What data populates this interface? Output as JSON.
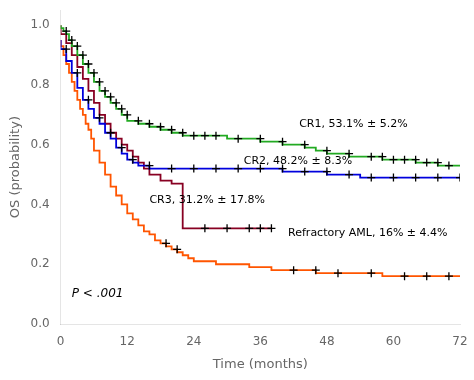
{
  "chart_data": {
    "type": "line",
    "xlabel": "Time (months)",
    "ylabel": "OS (probability)",
    "xlim": [
      0,
      72
    ],
    "ylim": [
      0,
      1.05
    ],
    "xticks": [
      0,
      12,
      24,
      36,
      48,
      60,
      72
    ],
    "yticks": [
      {
        "value": 0,
        "label": "0.0"
      },
      0.2,
      0.4,
      0.6,
      0.8,
      {
        "value": 1,
        "label": "1.0"
      }
    ],
    "grid": false,
    "series": [
      {
        "type": "step",
        "color": "#22aa22",
        "x": [
          0,
          0.5,
          1,
          1.5,
          2,
          3,
          4,
          5,
          6,
          7,
          8,
          9,
          10,
          11,
          12,
          14,
          16,
          18,
          20,
          22,
          24,
          26,
          28,
          30,
          32,
          34,
          36,
          38,
          40,
          42,
          44,
          46,
          48,
          50,
          52,
          54,
          56,
          58,
          60,
          62,
          64,
          66,
          68,
          70,
          72
        ],
        "values": [
          1.0,
          0.99,
          0.98,
          0.97,
          0.95,
          0.93,
          0.9,
          0.87,
          0.84,
          0.81,
          0.78,
          0.76,
          0.74,
          0.72,
          0.7,
          0.68,
          0.67,
          0.66,
          0.65,
          0.64,
          0.63,
          0.63,
          0.63,
          0.63,
          0.62,
          0.62,
          0.62,
          0.61,
          0.61,
          0.6,
          0.6,
          0.59,
          0.58,
          0.57,
          0.57,
          0.56,
          0.56,
          0.56,
          0.55,
          0.55,
          0.55,
          0.54,
          0.54,
          0.53,
          0.53
        ]
      },
      {
        "type": "scatter",
        "marker": "plus",
        "color": "#000000",
        "x": [
          1,
          2,
          3,
          4,
          5,
          6,
          7,
          8,
          9,
          10,
          11,
          12,
          14,
          16,
          18,
          20,
          22,
          24,
          26,
          28,
          32,
          36,
          40,
          44,
          48,
          52,
          56,
          58,
          60,
          62,
          64,
          66,
          68,
          70
        ],
        "values": [
          0.98,
          0.95,
          0.93,
          0.9,
          0.87,
          0.84,
          0.81,
          0.78,
          0.76,
          0.74,
          0.72,
          0.7,
          0.68,
          0.67,
          0.66,
          0.65,
          0.64,
          0.63,
          0.63,
          0.63,
          0.62,
          0.62,
          0.61,
          0.6,
          0.58,
          0.57,
          0.56,
          0.56,
          0.55,
          0.55,
          0.55,
          0.54,
          0.54,
          0.53
        ]
      },
      {
        "type": "step",
        "color": "#0000dd",
        "x": [
          0,
          1,
          2,
          3,
          4,
          5,
          6,
          7,
          8,
          9,
          10,
          11,
          12,
          13,
          14,
          16,
          18,
          20,
          22,
          24,
          26,
          28,
          30,
          32,
          34,
          36,
          38,
          40,
          42,
          44,
          46,
          48,
          50,
          52,
          54,
          56,
          58,
          60,
          62,
          64,
          66,
          68,
          70,
          72
        ],
        "values": [
          0.95,
          0.92,
          0.88,
          0.84,
          0.79,
          0.75,
          0.72,
          0.69,
          0.67,
          0.64,
          0.62,
          0.59,
          0.57,
          0.55,
          0.54,
          0.53,
          0.52,
          0.52,
          0.52,
          0.52,
          0.52,
          0.52,
          0.52,
          0.52,
          0.52,
          0.52,
          0.52,
          0.52,
          0.51,
          0.51,
          0.51,
          0.51,
          0.5,
          0.5,
          0.5,
          0.49,
          0.49,
          0.49,
          0.49,
          0.49,
          0.49,
          0.49,
          0.49,
          0.49
        ]
      },
      {
        "type": "scatter",
        "marker": "plus",
        "color": "#000000",
        "x": [
          1,
          3,
          5,
          7,
          9,
          11,
          13,
          16,
          20,
          24,
          28,
          32,
          36,
          40,
          44,
          48,
          52,
          56,
          60,
          64,
          68,
          72
        ],
        "values": [
          0.92,
          0.84,
          0.75,
          0.69,
          0.64,
          0.59,
          0.55,
          0.53,
          0.52,
          0.52,
          0.52,
          0.52,
          0.52,
          0.52,
          0.51,
          0.51,
          0.5,
          0.49,
          0.49,
          0.49,
          0.49,
          0.49
        ]
      },
      {
        "type": "step",
        "color": "#880022",
        "x": [
          0,
          1,
          2,
          3,
          4,
          5,
          6,
          7,
          8,
          9,
          10,
          11,
          12,
          13,
          14,
          15,
          16,
          18,
          20,
          22,
          24,
          26,
          28,
          30,
          32,
          34,
          36,
          38
        ],
        "values": [
          1.0,
          0.97,
          0.94,
          0.9,
          0.86,
          0.82,
          0.78,
          0.74,
          0.7,
          0.67,
          0.64,
          0.62,
          0.6,
          0.58,
          0.56,
          0.54,
          0.52,
          0.5,
          0.48,
          0.47,
          0.32,
          0.32,
          0.32,
          0.32,
          0.32,
          0.32,
          0.32,
          0.32
        ]
      },
      {
        "type": "scatter",
        "marker": "plus",
        "color": "#000000",
        "x": [
          26,
          30,
          34,
          36,
          38
        ],
        "values": [
          0.32,
          0.32,
          0.32,
          0.32,
          0.32
        ]
      },
      {
        "type": "step",
        "color": "#ff5500",
        "x": [
          0,
          0.5,
          1,
          1.5,
          2,
          2.5,
          3,
          3.5,
          4,
          4.5,
          5,
          5.5,
          6,
          7,
          8,
          9,
          10,
          11,
          12,
          13,
          14,
          15,
          16,
          17,
          18,
          19,
          20,
          21,
          22,
          23,
          24,
          26,
          28,
          30,
          32,
          34,
          36,
          38,
          40,
          42,
          44,
          46,
          48,
          50,
          52,
          54,
          56,
          58,
          60,
          62,
          64,
          66,
          68,
          70,
          72
        ],
        "values": [
          0.95,
          0.93,
          0.9,
          0.87,
          0.84,
          0.81,
          0.78,
          0.75,
          0.72,
          0.7,
          0.67,
          0.65,
          0.62,
          0.58,
          0.54,
          0.5,
          0.46,
          0.43,
          0.4,
          0.37,
          0.35,
          0.33,
          0.31,
          0.3,
          0.28,
          0.27,
          0.26,
          0.25,
          0.24,
          0.23,
          0.22,
          0.21,
          0.21,
          0.2,
          0.2,
          0.2,
          0.19,
          0.19,
          0.18,
          0.18,
          0.18,
          0.18,
          0.17,
          0.17,
          0.17,
          0.17,
          0.17,
          0.17,
          0.16,
          0.16,
          0.16,
          0.16,
          0.16,
          0.16,
          0.16
        ]
      },
      {
        "type": "scatter",
        "marker": "plus",
        "color": "#000000",
        "x": [
          19,
          21,
          42,
          46,
          50,
          56,
          62,
          66,
          70
        ],
        "values": [
          0.27,
          0.25,
          0.18,
          0.18,
          0.17,
          0.17,
          0.16,
          0.16,
          0.16
        ]
      }
    ],
    "annotations": [
      {
        "text": "CR1, 53.1% ± 5.2%",
        "x": 43,
        "y": 0.67
      },
      {
        "text": "CR2, 48.2% ± 8.3%",
        "x": 33,
        "y": 0.545
      },
      {
        "text": "CR3, 31.2% ± 17.8%",
        "x": 16,
        "y": 0.415
      },
      {
        "text": "Refractory AML, 16% ± 4.4%",
        "x": 41,
        "y": 0.305
      }
    ],
    "p_value": {
      "text": "P < .001",
      "x": 2,
      "y": 0.09
    }
  }
}
